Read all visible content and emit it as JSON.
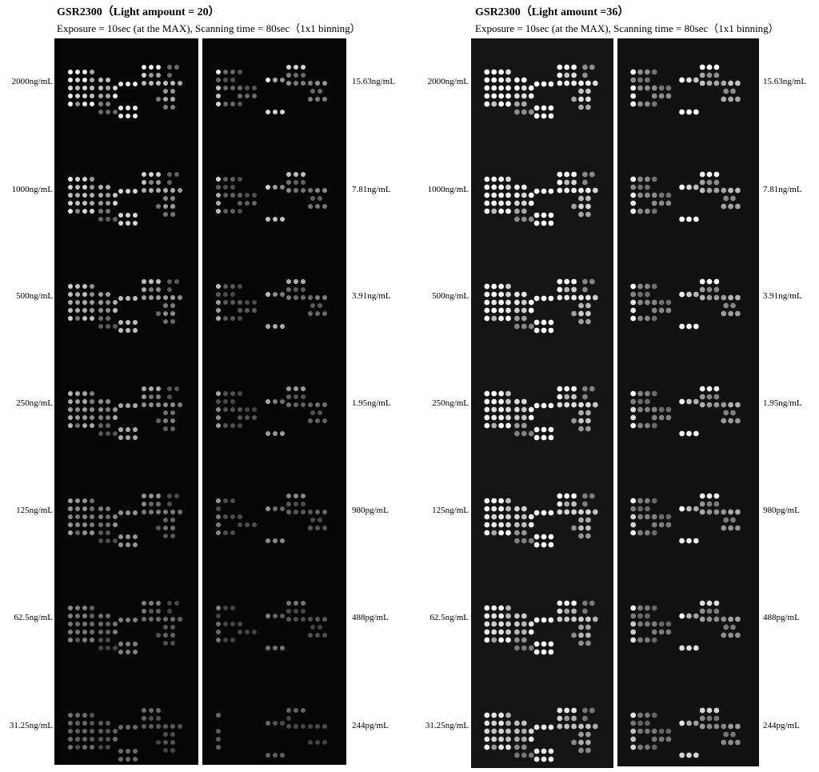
{
  "panels": [
    {
      "title": "GSR2300（Light ampount = 20）",
      "subtitle": "Exposure = 10sec (at the MAX), Scanning time = 80sec（1x1 binning）",
      "left_labels": [
        "2000ng/mL",
        "1000ng/mL",
        "500ng/mL",
        "250ng/mL",
        "125ng/mL",
        "62.5ng/mL",
        "31.25ng/mL"
      ],
      "right_labels": [
        "15.63ng/mL",
        "7.81ng/mL",
        "3.91ng/mL",
        "1.95ng/mL",
        "980pg/mL",
        "488pg/mL",
        "244pg/mL"
      ],
      "background_color": "#050505"
    },
    {
      "title": "GSR2300（Light amount =36）",
      "subtitle": "Exposure = 10sec (at the MAX), Scanning time = 80sec（1x1 binning）",
      "left_labels": [
        "2000ng/mL",
        "1000ng/mL",
        "500ng/mL",
        "250ng/mL",
        "125ng/mL",
        "62.5ng/mL",
        "31.25ng/mL"
      ],
      "right_labels": [
        "15.63ng/mL",
        "7.81ng/mL",
        "3.91ng/mL",
        "1.95ng/mL",
        "980pg/mL",
        "488pg/mL",
        "244pg/mL"
      ],
      "background_color": "#141414"
    }
  ]
}
